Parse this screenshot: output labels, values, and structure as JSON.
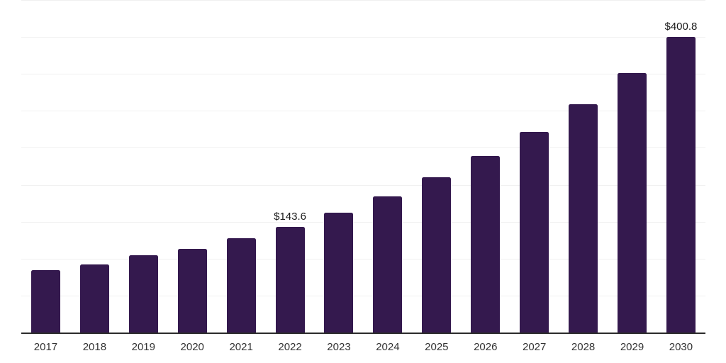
{
  "chart_data": {
    "type": "bar",
    "title": "",
    "xlabel": "",
    "ylabel": "",
    "categories": [
      "2017",
      "2018",
      "2019",
      "2020",
      "2021",
      "2022",
      "2023",
      "2024",
      "2025",
      "2026",
      "2027",
      "2028",
      "2029",
      "2030"
    ],
    "values": [
      85.4,
      93.1,
      105.5,
      114.2,
      128.6,
      143.6,
      163.2,
      185.6,
      211.0,
      239.9,
      272.7,
      310.0,
      352.4,
      400.8
    ],
    "data_labels": [
      "",
      "",
      "",
      "",
      "",
      "$143.6",
      "",
      "",
      "",
      "",
      "",
      "",
      "",
      "$400.8"
    ],
    "ylim": [
      0,
      450
    ],
    "gridline_interval": 50,
    "grid": "horizontal-only",
    "y_tick_labels_shown": false,
    "legend": "none",
    "colors": {
      "bar": "#34194E",
      "gridline": "#F0F0F0",
      "axis_line": "#2B2B2B",
      "tick_label": "#333333",
      "data_label": "#1A1A1A",
      "background": "#FFFFFF"
    }
  }
}
